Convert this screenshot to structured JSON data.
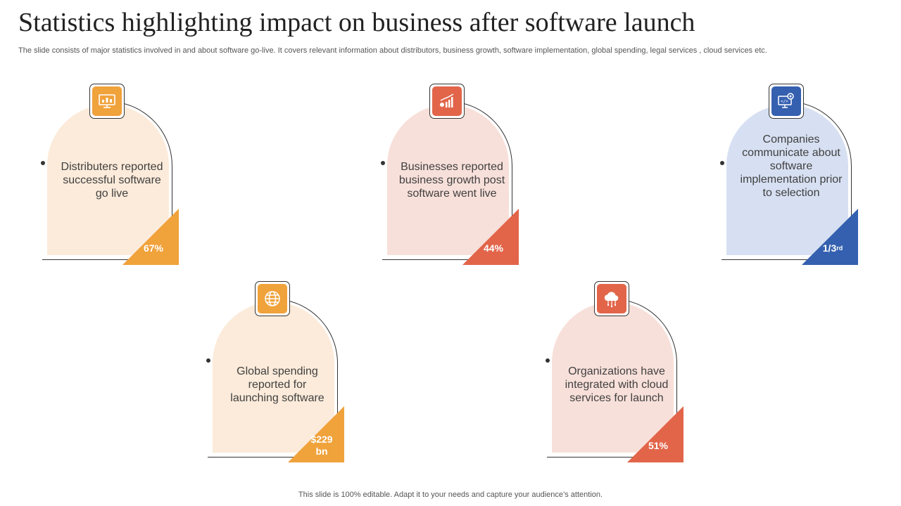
{
  "title": "Statistics highlighting impact on business after software launch",
  "subtitle": "The slide consists of major statistics involved in and about software go-live. It covers relevant information about distributors, business growth, software implementation, global spending, legal services , cloud services etc.",
  "footer": "This slide is 100% editable. Adapt it to your needs and capture your audience’s attention.",
  "colors": {
    "orange": "#F0A23B",
    "orange_light": "#FCEBDA",
    "red": "#E2654A",
    "red_light": "#F8E0DA",
    "blue": "#3560B0",
    "blue_light": "#D7E0F2"
  },
  "cards": [
    {
      "description": "Distributers reported successful software go live",
      "stat": "67%",
      "stat_sup": "",
      "icon": "monitor-growth-icon",
      "theme": "orange"
    },
    {
      "description": "Businesses reported business growth post software went live",
      "stat": "44%",
      "stat_sup": "",
      "icon": "bar-chart-icon",
      "theme": "red"
    },
    {
      "description": "Companies communicate about software implementation prior to selection",
      "stat": "1/3",
      "stat_sup": "rd",
      "icon": "monitor-gear-icon",
      "theme": "blue"
    },
    {
      "description": "Global spending reported for launching software",
      "stat": "$229 bn",
      "stat_sup": "",
      "icon": "globe-icon",
      "theme": "orange"
    },
    {
      "description": "Organizations have integrated with cloud services for launch",
      "stat": "51%",
      "stat_sup": "",
      "icon": "cloud-icon",
      "theme": "red"
    }
  ]
}
